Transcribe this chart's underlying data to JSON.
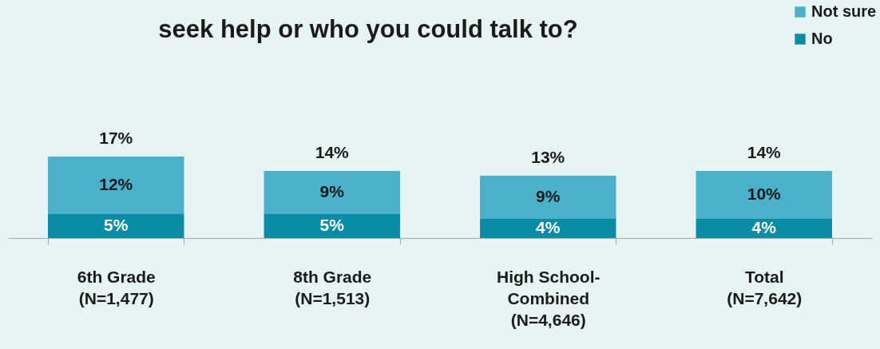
{
  "chart_data": {
    "type": "bar",
    "title": "seek help or who you could talk to?",
    "stacked": true,
    "legend": "top right",
    "categories": [
      "6th Grade\n(N=1,477)",
      "8th Grade\n(N=1,513)",
      "High School-\nCombined\n(N=4,646)",
      "Total\n(N=7,642)"
    ],
    "series": [
      {
        "name": "No",
        "color": "#0b8ca6",
        "values": [
          5,
          5,
          4,
          4
        ],
        "value_labels": [
          "5%",
          "5%",
          "4%",
          "4%"
        ]
      },
      {
        "name": "Not sure",
        "color": "#4bb0c9",
        "values": [
          12,
          9,
          9,
          10
        ],
        "value_labels": [
          "12%",
          "9%",
          "9%",
          "10%"
        ]
      }
    ],
    "totals": [
      "17%",
      "14%",
      "13%",
      "14%"
    ]
  }
}
